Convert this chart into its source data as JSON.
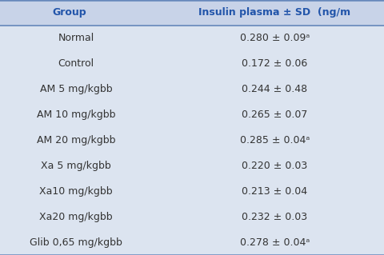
{
  "header": [
    "Group",
    "Insulin plasma ± SD  (ng/m"
  ],
  "rows": [
    [
      "Normal",
      "0.280 ± 0.09ᵃ"
    ],
    [
      "Control",
      "0.172 ± 0.06"
    ],
    [
      "AM 5 mg/kgbb",
      "0.244 ± 0.48"
    ],
    [
      "AM 10 mg/kgbb",
      "0.265 ± 0.07"
    ],
    [
      "AM 20 mg/kgbb",
      "0.285 ± 0.04ᵃ"
    ],
    [
      "Xa 5 mg/kgbb",
      "0.220 ± 0.03"
    ],
    [
      "Xa10 mg/kgbb",
      "0.213 ± 0.04"
    ],
    [
      "Xa20 mg/kgbb",
      "0.232 ± 0.03"
    ],
    [
      "Glib 0,65 mg/kgbb",
      "0.278 ± 0.04ᵃ"
    ]
  ],
  "header_bg": "#c8d3e8",
  "row_bg": "#dce4f0",
  "header_text_color": "#2255aa",
  "row_text_color": "#333333",
  "border_color": "#6688bb",
  "header_fontsize": 9.0,
  "row_fontsize": 9.0,
  "fig_width": 4.8,
  "fig_height": 3.19,
  "dpi": 100,
  "col_split": 0.43
}
